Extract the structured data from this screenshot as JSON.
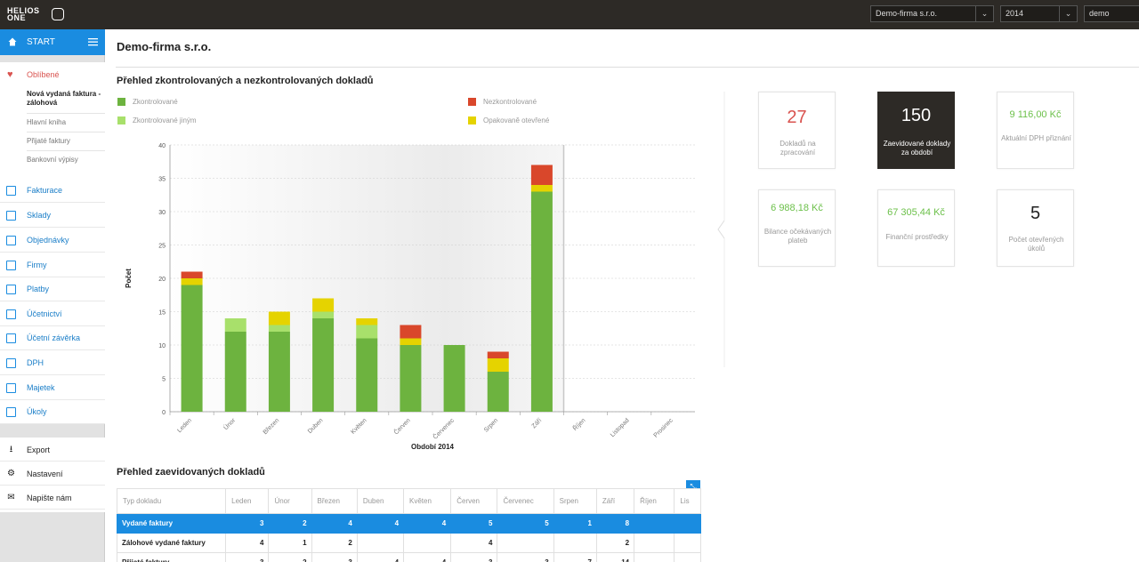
{
  "topbar": {
    "logo_line1": "HELIOS",
    "logo_line2": "ONE",
    "company_select": "Demo-firma s.r.o.",
    "year_select": "2014",
    "user": "demo"
  },
  "sidebar": {
    "start_label": "START",
    "favorites_title": "Oblíbené",
    "favorites": [
      "Nová vydaná faktura - zálohová",
      "Hlavní kniha",
      "Přijaté faktury",
      "Bankovní výpisy"
    ],
    "nav": [
      {
        "label": "Fakturace",
        "icon": "invoice-icon"
      },
      {
        "label": "Sklady",
        "icon": "box-icon"
      },
      {
        "label": "Objednávky",
        "icon": "order-icon"
      },
      {
        "label": "Firmy",
        "icon": "building-icon"
      },
      {
        "label": "Platby",
        "icon": "payment-icon"
      },
      {
        "label": "Účetnictví",
        "icon": "accounting-icon"
      },
      {
        "label": "Účetní závěrka",
        "icon": "closing-icon"
      },
      {
        "label": "DPH",
        "icon": "tax-icon"
      },
      {
        "label": "Majetek",
        "icon": "assets-icon"
      },
      {
        "label": "Úkoly",
        "icon": "tasks-icon"
      }
    ],
    "bottom": [
      {
        "label": "Export",
        "icon": "export-icon"
      },
      {
        "label": "Nastavení",
        "icon": "gear-icon"
      },
      {
        "label": "Napište nám",
        "icon": "mail-icon"
      }
    ]
  },
  "main": {
    "company_title": "Demo-firma s.r.o.",
    "chart_title": "Přehled zkontrolovaných a nezkontrolovaných dokladů",
    "tiles": [
      {
        "value": "27",
        "label": "Dokladů na zpracování",
        "color": "#d9534f",
        "dark": false
      },
      {
        "value": "150",
        "label": "Zaevidované doklady za období",
        "color": "#ffffff",
        "dark": true
      },
      {
        "value": "9 116,00 Kč",
        "label": "Aktuální DPH přiznání",
        "color": "#6cc04a",
        "dark": false
      },
      {
        "value": "6 988,18 Kč",
        "label": "Bilance očekávaných plateb",
        "color": "#6cc04a",
        "dark": false
      },
      {
        "value": "67 305,44 Kč",
        "label": "Finanční prostředky",
        "color": "#6cc04a",
        "dark": false
      },
      {
        "value": "5",
        "label": "Počet otevřených úkolů",
        "color": "#222222",
        "dark": false
      }
    ],
    "table_title": "Přehled zaevidovaných dokladů",
    "table_button": "⤡",
    "table": {
      "headers": [
        "Typ dokladu",
        "Leden",
        "Únor",
        "Březen",
        "Duben",
        "Květen",
        "Červen",
        "Červenec",
        "Srpen",
        "Září",
        "Říjen",
        "Lis"
      ],
      "rows": [
        {
          "cells": [
            "Vydané faktury",
            "3",
            "2",
            "4",
            "4",
            "4",
            "5",
            "5",
            "1",
            "8",
            "",
            ""
          ],
          "selected": true
        },
        {
          "cells": [
            "Zálohové vydané faktury",
            "4",
            "1",
            "2",
            "",
            "",
            "4",
            "",
            "",
            "2",
            "",
            ""
          ],
          "selected": false
        },
        {
          "cells": [
            "Přijaté faktury",
            "3",
            "2",
            "3",
            "4",
            "4",
            "3",
            "3",
            "7",
            "14",
            "",
            ""
          ],
          "selected": false
        }
      ]
    }
  },
  "chart_data": {
    "type": "bar",
    "stacked": true,
    "title": "Přehled zkontrolovaných a nezkontrolovaných dokladů",
    "xlabel": "Období 2014",
    "ylabel": "Počet",
    "ylim": [
      0,
      40
    ],
    "yticks": [
      0,
      5,
      10,
      15,
      20,
      25,
      30,
      35,
      40
    ],
    "categories": [
      "Leden",
      "Únor",
      "Březen",
      "Duben",
      "Květen",
      "Červen",
      "Červenec",
      "Srpen",
      "Září",
      "Říjen",
      "Listopad",
      "Prosinec"
    ],
    "series": [
      {
        "name": "Zkontrolované",
        "color": "#6db33f",
        "values": [
          19,
          12,
          12,
          14,
          11,
          10,
          10,
          6,
          33,
          0,
          0,
          0
        ]
      },
      {
        "name": "Zkontrolované jiným",
        "color": "#a8e06b",
        "values": [
          0,
          2,
          1,
          1,
          2,
          0,
          0,
          0,
          0,
          0,
          0,
          0
        ]
      },
      {
        "name": "Opakovaně otevřené",
        "color": "#e5d300",
        "values": [
          1,
          0,
          2,
          2,
          1,
          1,
          0,
          2,
          1,
          0,
          0,
          0
        ]
      },
      {
        "name": "Nezkontrolované",
        "color": "#d9472b",
        "values": [
          1,
          0,
          0,
          0,
          0,
          2,
          0,
          1,
          3,
          0,
          0,
          0
        ]
      }
    ],
    "legend_position": "top",
    "grid": true
  }
}
